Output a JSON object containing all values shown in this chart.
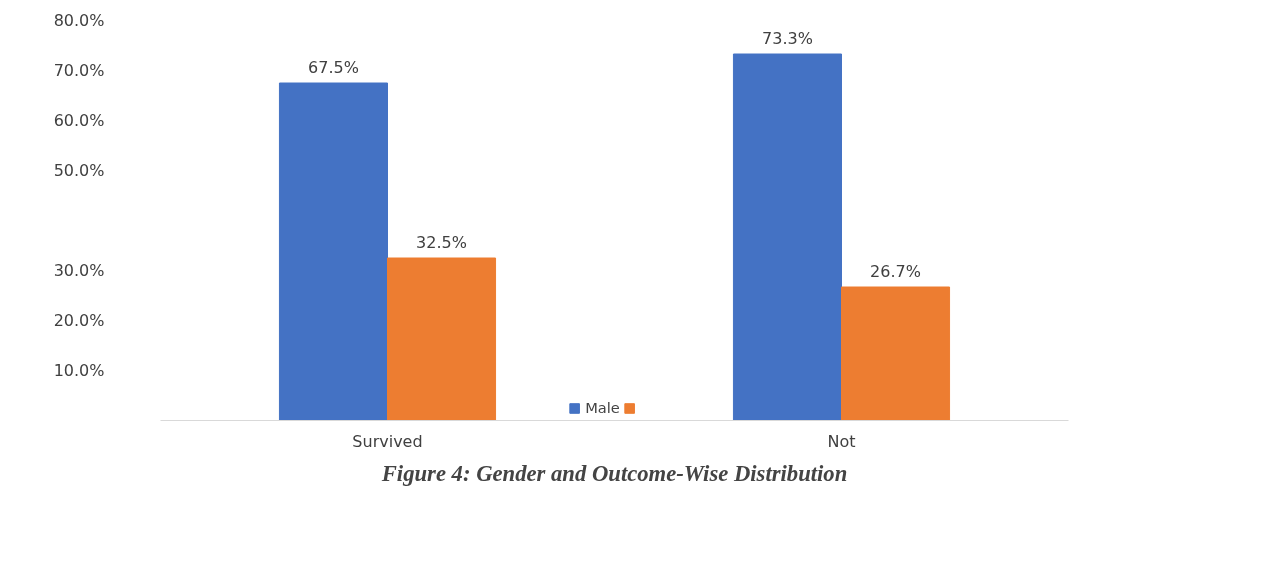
{
  "chart_data": {
    "type": "bar",
    "title": "Figure 4: Gender and Outcome-Wise Distribution",
    "categories": [
      "Survived",
      "Not"
    ],
    "series": [
      {
        "name": "Male",
        "color": "#4472c4",
        "values": [
          67.5,
          73.3
        ]
      },
      {
        "color": "#ed7d31",
        "values": [
          32.5,
          26.7
        ]
      }
    ],
    "ylim": [
      0,
      80
    ],
    "yticks": [
      {
        "value": 10,
        "label": "10.0%"
      },
      {
        "value": 20,
        "label": "20.0%"
      },
      {
        "value": 30,
        "label": "30.0%"
      },
      {
        "value": 50,
        "label": "50.0%"
      },
      {
        "value": 60,
        "label": "60.0%"
      },
      {
        "value": 70,
        "label": "70.0%"
      },
      {
        "value": 80,
        "label": "80.0%"
      }
    ],
    "value_labels": [
      [
        "67.5%",
        "73.3%"
      ],
      [
        "32.5%",
        "26.7%"
      ]
    ],
    "legend": "bottom",
    "grid": false
  }
}
